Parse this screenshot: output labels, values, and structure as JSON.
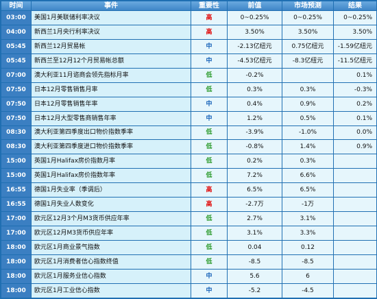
{
  "header": {
    "time": "时间",
    "event": "事件",
    "importance": "重要性",
    "previous": "前值",
    "forecast": "市场预测",
    "result": "结果"
  },
  "importance_colors": {
    "高": "#e00000",
    "中": "#1460b8",
    "低": "#2a9a2a"
  },
  "rows": [
    {
      "time": "03:00",
      "event": "美国1月美联储利率决议",
      "importance": "高",
      "previous": "0~0.25%",
      "forecast": "0~0.25%",
      "result": "0~0.25%"
    },
    {
      "time": "04:00",
      "event": "新西兰1月央行利率决议",
      "importance": "高",
      "previous": "3.50%",
      "forecast": "3.50%",
      "result": "3.50%"
    },
    {
      "time": "05:45",
      "event": "新西兰12月贸易帐",
      "importance": "中",
      "previous": "-2.13亿纽元",
      "forecast": "0.75亿纽元",
      "result": "-1.59亿纽元"
    },
    {
      "time": "05:45",
      "event": "新西兰至12月12个月贸易帐总额",
      "importance": "中",
      "previous": "-4.53亿纽元",
      "forecast": "-8.3亿纽元",
      "result": "-11.5亿纽元"
    },
    {
      "time": "07:00",
      "event": "澳大利亚11月谘商会领先指标月率",
      "importance": "低",
      "previous": "-0.2%",
      "forecast": "",
      "result": "0.1%"
    },
    {
      "time": "07:50",
      "event": "日本12月零售销售月率",
      "importance": "低",
      "previous": "0.3%",
      "forecast": "0.3%",
      "result": "-0.3%"
    },
    {
      "time": "07:50",
      "event": "日本12月零售销售年率",
      "importance": "中",
      "previous": "0.4%",
      "forecast": "0.9%",
      "result": "0.2%"
    },
    {
      "time": "07:50",
      "event": "日本12月大型零售商销售年率",
      "importance": "中",
      "previous": "1.2%",
      "forecast": "0.5%",
      "result": "0.1%"
    },
    {
      "time": "08:30",
      "event": "澳大利亚第四季度出口物价指数季率",
      "importance": "低",
      "previous": "-3.9%",
      "forecast": "-1.0%",
      "result": "0.0%"
    },
    {
      "time": "08:30",
      "event": "澳大利亚第四季度进口物价指数季率",
      "importance": "低",
      "previous": "-0.8%",
      "forecast": "1.4%",
      "result": "0.9%"
    },
    {
      "time": "15:00",
      "event": "英国1月Halifax房价指数月率",
      "importance": "低",
      "previous": "0.2%",
      "forecast": "0.3%",
      "result": ""
    },
    {
      "time": "15:00",
      "event": "英国1月Halifax房价指数年率",
      "importance": "低",
      "previous": "7.2%",
      "forecast": "6.6%",
      "result": ""
    },
    {
      "time": "16:55",
      "event": "德国1月失业率（季调后）",
      "importance": "高",
      "previous": "6.5%",
      "forecast": "6.5%",
      "result": ""
    },
    {
      "time": "16:55",
      "event": "德国1月失业人数变化",
      "importance": "高",
      "previous": "-2.7万",
      "forecast": "-1万",
      "result": ""
    },
    {
      "time": "17:00",
      "event": "欧元区12月3个月M3货币供应年率",
      "importance": "低",
      "previous": "2.7%",
      "forecast": "3.1%",
      "result": ""
    },
    {
      "time": "17:00",
      "event": "欧元区12月M3货币供应年率",
      "importance": "低",
      "previous": "3.1%",
      "forecast": "3.3%",
      "result": ""
    },
    {
      "time": "18:00",
      "event": "欧元区1月商业景气指数",
      "importance": "低",
      "previous": "0.04",
      "forecast": "0.12",
      "result": ""
    },
    {
      "time": "18:00",
      "event": "欧元区1月消费者信心指数终值",
      "importance": "低",
      "previous": "-8.5",
      "forecast": "-8.5",
      "result": ""
    },
    {
      "time": "18:00",
      "event": "欧元区1月服务业信心指数",
      "importance": "中",
      "previous": "5.6",
      "forecast": "6",
      "result": ""
    },
    {
      "time": "18:00",
      "event": "欧元区1月工业信心指数",
      "importance": "中",
      "previous": "-5.2",
      "forecast": "-4.5",
      "result": ""
    }
  ]
}
